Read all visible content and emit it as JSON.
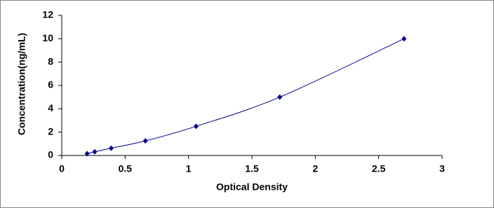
{
  "chart_data": {
    "type": "scatter",
    "x_label": "Optical Density",
    "y_label": "Concentration(ng/mL)",
    "x": [
      0.2,
      0.26,
      0.39,
      0.66,
      1.06,
      1.72,
      2.7
    ],
    "values": [
      0.156,
      0.312,
      0.625,
      1.25,
      2.5,
      5,
      10
    ],
    "color": "#00008b",
    "line": true,
    "xlim": [
      0,
      3
    ],
    "xticks": [
      0,
      0.5,
      1,
      1.5,
      2,
      2.5,
      3
    ],
    "ylim": [
      0,
      12
    ],
    "yticks": [
      0,
      2,
      4,
      6,
      8,
      10,
      12
    ],
    "grid": false
  }
}
